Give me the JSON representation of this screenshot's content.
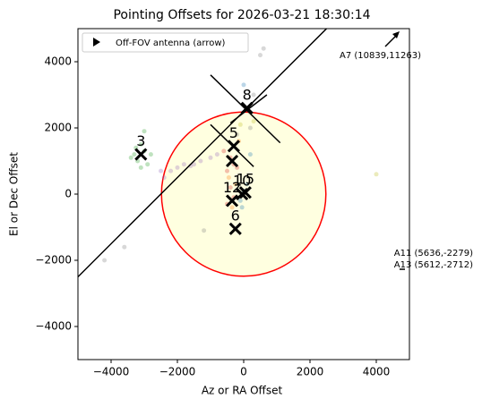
{
  "chart_data": {
    "type": "scatter",
    "title": "Pointing Offsets for 2026-03-21 18:30:14",
    "x_label": "Az or RA Offset",
    "y_label": "El or Dec Offset",
    "xlim": [
      -5000,
      5000
    ],
    "ylim": [
      -5000,
      5000
    ],
    "xticks": [
      {
        "value": -4000,
        "label": "−4000"
      },
      {
        "value": -2000,
        "label": "−2000"
      },
      0,
      2000,
      4000
    ],
    "yticks": [
      {
        "value": -4000,
        "label": "−4000"
      },
      {
        "value": -2000,
        "label": "−2000"
      },
      0,
      2000,
      4000
    ],
    "legend": {
      "label": "Off-FOV antenna (arrow)",
      "position": "upper left"
    },
    "circle": {
      "x": 0,
      "y": 0,
      "r": 2480,
      "color": "#ff0000",
      "fill": "#ffffe0"
    },
    "lines": [
      {
        "x": [
          -5000,
          2500
        ],
        "y": [
          -2500,
          5000
        ]
      },
      {
        "x": [
          -1000,
          1100
        ],
        "y": [
          3600,
          1550
        ]
      },
      {
        "x": [
          -400,
          700
        ],
        "y": [
          2150,
          3000
        ]
      },
      {
        "x": [
          -1000,
          300
        ],
        "y": [
          2100,
          830
        ]
      }
    ],
    "series": [
      {
        "color": "#2ca02c",
        "x": [
          -3200,
          -3000,
          -3300,
          -2900,
          -3100,
          -3400,
          -2800,
          -3100,
          -3000,
          -3250
        ],
        "values": [
          1000,
          1300,
          1200,
          900,
          1500,
          1100,
          1200,
          800,
          1900,
          1400
        ]
      },
      {
        "color": "#9467bd",
        "x": [
          -2500,
          -2200,
          -2000,
          -1800,
          -1500,
          -1300,
          -1000,
          -800,
          -2400,
          -1600
        ],
        "values": [
          700,
          700,
          800,
          900,
          900,
          1000,
          1100,
          1200,
          500,
          850
        ]
      },
      {
        "color": "#d62728",
        "x": [
          -600,
          -400,
          -300,
          -500,
          -200,
          -400,
          -300,
          -500
        ],
        "values": [
          1300,
          1100,
          900,
          700,
          800,
          200,
          -100,
          -300
        ]
      },
      {
        "color": "#ff7f0e",
        "x": [
          -450,
          -250,
          -350,
          -150
        ],
        "values": [
          500,
          300,
          -400,
          1600
        ]
      },
      {
        "color": "#1f77b4",
        "x": [
          0,
          -100,
          100,
          -50,
          200,
          0
        ],
        "values": [
          100,
          -200,
          300,
          -400,
          1200,
          3300
        ]
      },
      {
        "color": "#7f7f7f",
        "x": [
          -1200,
          -4200,
          -3600,
          300,
          500,
          600,
          -200,
          200
        ],
        "values": [
          -1100,
          -2000,
          -1600,
          3000,
          4200,
          4400,
          1800,
          2000
        ]
      },
      {
        "color": "#bcbd22",
        "x": [
          4000,
          300,
          -100
        ],
        "values": [
          600,
          2200,
          2100
        ]
      }
    ],
    "antennas": [
      {
        "label": "3",
        "x": -3100,
        "y": 1200
      },
      {
        "label": "5",
        "x": -300,
        "y": 1450
      },
      {
        "label": "8",
        "x": 100,
        "y": 2600
      },
      {
        "label": "12",
        "x": -350,
        "y": -200
      },
      {
        "label": "6",
        "x": -250,
        "y": -1050
      },
      {
        "label": "10",
        "x": -50,
        "y": 0
      },
      {
        "label": "15",
        "x": 50,
        "y": 50
      }
    ],
    "extra_markers": [
      {
        "x": -350,
        "y": 1000
      }
    ],
    "annotations": [
      "A7 (10839,11263)",
      "A11 (5636,-2279)",
      "A13 (5612,-2712)"
    ]
  }
}
